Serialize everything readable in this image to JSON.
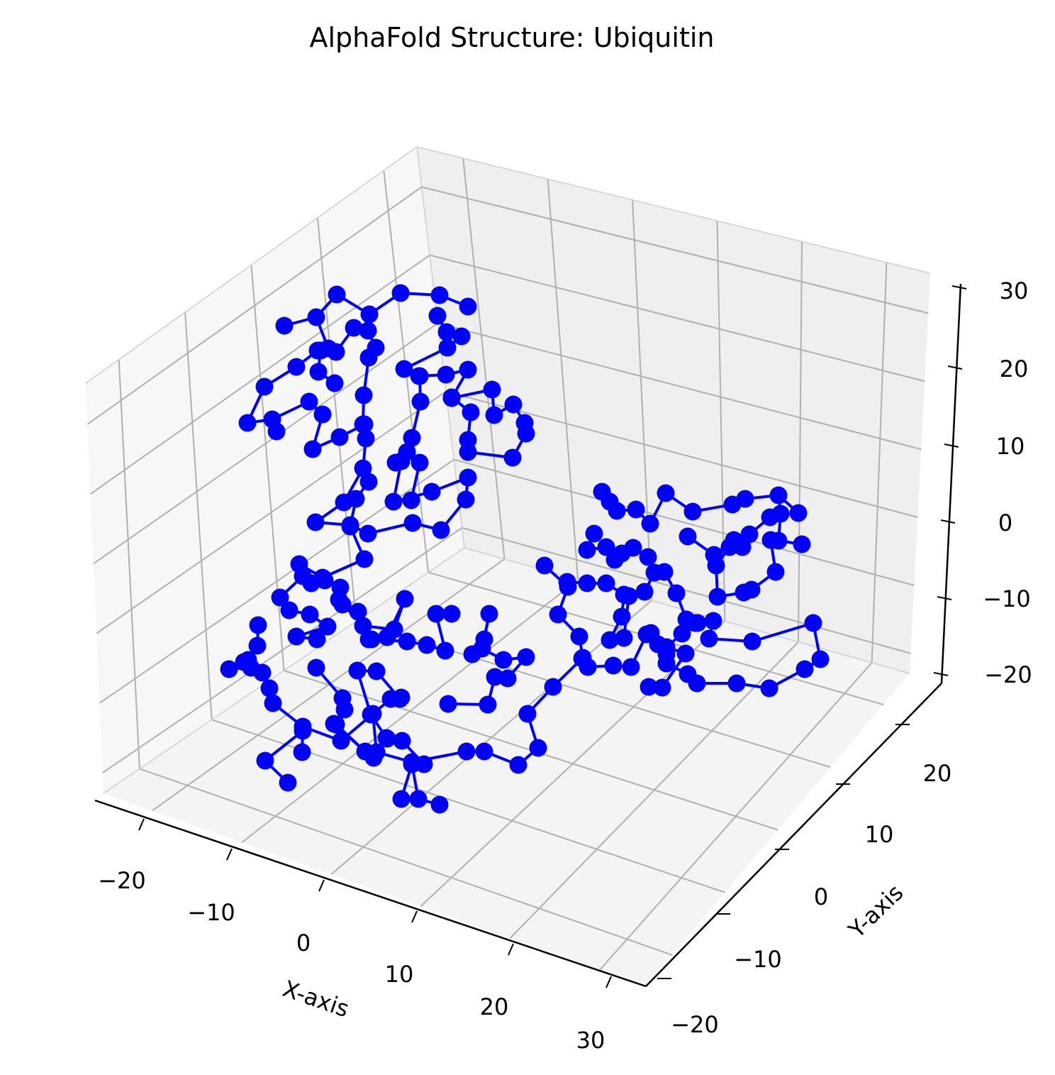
{
  "chart_data": {
    "type": "scatter",
    "subtype": "3d-line-with-markers",
    "title": "AlphaFold Structure: Ubiquitin",
    "xlabel": "X-axis",
    "ylabel": "Y-axis",
    "zlabel": "",
    "x_ticks": [
      "−20",
      "−10",
      "0",
      "10",
      "20",
      "30"
    ],
    "y_ticks": [
      "−20",
      "−10",
      "0",
      "10",
      "20"
    ],
    "z_ticks": [
      "−20",
      "−10",
      "0",
      "10",
      "20",
      "30"
    ],
    "grid": true,
    "color": "#0000ff",
    "pane_color": "#f2f2f2",
    "series": [
      {
        "segments": [
          [
            [
              401,
              459
            ],
            [
              446,
              447
            ],
            [
              475,
              415
            ],
            [
              521,
              443
            ],
            [
              565,
              413
            ],
            [
              620,
              416
            ],
            [
              660,
              432
            ]
          ],
          [
            [
              446,
              447
            ],
            [
              463,
              491
            ],
            [
              448,
              494
            ],
            [
              418,
              517
            ],
            [
              373,
              545
            ],
            [
              349,
              596
            ],
            [
              384,
              591
            ],
            [
              436,
              566
            ],
            [
              455,
              584
            ],
            [
              441,
              633
            ],
            [
              479,
              616
            ],
            [
              514,
              598
            ]
          ],
          [
            [
              474,
              496
            ],
            [
              499,
              462
            ],
            [
              519,
              466
            ],
            [
              530,
              490
            ],
            [
              520,
              504
            ],
            [
              513,
              557
            ],
            [
              512,
              598
            ]
          ],
          [
            [
              617,
              445
            ],
            [
              630,
              468
            ],
            [
              651,
              474
            ],
            [
              631,
              490
            ],
            [
              570,
              520
            ],
            [
              592,
              530
            ],
            [
              593,
              566
            ],
            [
              581,
              617
            ],
            [
              566,
              650
            ],
            [
              555,
              707
            ],
            [
              580,
              705
            ],
            [
              592,
              652
            ],
            [
              574,
              637
            ],
            [
              558,
              652
            ]
          ],
          [
            [
              591,
              530
            ],
            [
              629,
              528
            ],
            [
              660,
              521
            ],
            [
              637,
              561
            ],
            [
              694,
              549
            ],
            [
              697,
              585
            ],
            [
              724,
              570
            ],
            [
              740,
              596
            ],
            [
              742,
              611
            ],
            [
              723,
              645
            ],
            [
              660,
              637
            ],
            [
              660,
              620
            ],
            [
              664,
              581
            ],
            [
              637,
              560
            ]
          ],
          [
            [
              452,
              494
            ],
            [
              449,
              524
            ],
            [
              472,
              540
            ]
          ],
          [
            [
              516,
              618
            ],
            [
              512,
              660
            ],
            [
              485,
              708
            ],
            [
              445,
              736
            ],
            [
              494,
              740
            ],
            [
              519,
              752
            ],
            [
              582,
              737
            ],
            [
              622,
              747
            ],
            [
              657,
              704
            ],
            [
              660,
              673
            ],
            [
              609,
              693
            ],
            [
              555,
              707
            ]
          ],
          [
            [
              512,
              660
            ],
            [
              520,
              679
            ],
            [
              502,
              703
            ],
            [
              494,
              742
            ],
            [
              514,
              788
            ],
            [
              455,
              814
            ],
            [
              422,
              795
            ]
          ],
          [
            [
              390,
              608
            ],
            [
              384,
              591
            ]
          ],
          [
            [
              422,
              795
            ],
            [
              427,
              812
            ],
            [
              395,
              842
            ],
            [
              408,
              860
            ],
            [
              437,
              866
            ],
            [
              462,
              883
            ],
            [
              418,
              897
            ],
            [
              447,
              901
            ]
          ],
          [
            [
              427,
              812
            ],
            [
              439,
              822
            ],
            [
              458,
              818
            ],
            [
              480,
              828
            ],
            [
              483,
              852
            ],
            [
              505,
              862
            ],
            [
              520,
              901
            ],
            [
              546,
              898
            ],
            [
              571,
              844
            ],
            [
              556,
              887
            ],
            [
              512,
              882
            ],
            [
              478,
              845
            ]
          ],
          [
            [
              364,
              881
            ],
            [
              363,
              910
            ],
            [
              344,
              933
            ],
            [
              323,
              943
            ],
            [
              354,
              941
            ],
            [
              370,
              948
            ],
            [
              380,
              970
            ],
            [
              385,
              991
            ],
            [
              427,
              1024
            ],
            [
              481,
              1044
            ],
            [
              526,
              1006
            ],
            [
              551,
              985
            ],
            [
              566,
              983
            ]
          ],
          [
            [
              363,
              910
            ],
            [
              350,
              930
            ]
          ],
          [
            [
              446,
              941
            ],
            [
              483,
              984
            ],
            [
              486,
              1000
            ],
            [
              474,
              1021
            ],
            [
              515,
              1059
            ],
            [
              471,
              1020
            ]
          ],
          [
            [
              526,
              1006
            ],
            [
              531,
              1060
            ],
            [
              581,
              1074
            ],
            [
              658,
              1059
            ],
            [
              683,
              1059
            ],
            [
              731,
              1078
            ],
            [
              759,
              1054
            ],
            [
              744,
              1006
            ],
            [
              780,
              968
            ],
            [
              822,
              927
            ],
            [
              817,
              897
            ],
            [
              787,
              866
            ],
            [
              801,
              827
            ],
            [
              768,
              797
            ]
          ],
          [
            [
              406,
              1103
            ],
            [
              374,
              1072
            ],
            [
              427,
              1030
            ],
            [
              426,
              1060
            ]
          ],
          [
            [
              566,
              1126
            ],
            [
              581,
              1077
            ],
            [
              590,
              1126
            ],
            [
              620,
              1134
            ]
          ],
          [
            [
              598,
              1077
            ],
            [
              567,
              1044
            ],
            [
              546,
              1041
            ],
            [
              527,
              1068
            ]
          ],
          [
            [
              545,
              1040
            ],
            [
              523,
              1007
            ],
            [
              504,
              945
            ],
            [
              531,
              946
            ],
            [
              564,
              985
            ]
          ],
          [
            [
              524,
              901
            ],
            [
              574,
              904
            ],
            [
              602,
              909
            ],
            [
              628,
              917
            ],
            [
              615,
              865
            ],
            [
              637,
              865
            ]
          ],
          [
            [
              666,
              922
            ],
            [
              683,
              901
            ],
            [
              690,
              865
            ],
            [
              680,
              914
            ],
            [
              710,
              930
            ],
            [
              742,
              926
            ],
            [
              716,
              956
            ],
            [
              698,
              954
            ],
            [
              688,
              993
            ]
          ],
          [
            [
              632,
              992
            ],
            [
              688,
              993
            ]
          ],
          [
            [
              800,
              820
            ],
            [
              828,
              822
            ],
            [
              855,
              822
            ],
            [
              880,
              838
            ],
            [
              877,
              869
            ],
            [
              860,
              902
            ],
            [
              880,
              899
            ],
            [
              887,
              840
            ],
            [
              909,
              834
            ],
            [
              923,
              807
            ],
            [
              914,
              785
            ],
            [
              893,
              772
            ],
            [
              877,
              780
            ],
            [
              867,
              789
            ],
            [
              855,
              771
            ],
            [
              828,
              775
            ],
            [
              838,
              752
            ]
          ],
          [
            [
              849,
              693
            ],
            [
              860,
              707
            ],
            [
              870,
              720
            ],
            [
              897,
              718
            ],
            [
              917,
              738
            ],
            [
              939,
              695
            ],
            [
              977,
              721
            ],
            [
              1033,
              711
            ],
            [
              1051,
              703
            ],
            [
              1098,
              698
            ],
            [
              1126,
              723
            ]
          ],
          [
            [
              1098,
              698
            ],
            [
              1101,
              724
            ],
            [
              1098,
              762
            ],
            [
              1131,
              767
            ]
          ],
          [
            [
              1087,
              761
            ],
            [
              1094,
              806
            ],
            [
              1060,
              831
            ],
            [
              1049,
              835
            ],
            [
              1012,
              841
            ],
            [
              1010,
              797
            ],
            [
              1029,
              771
            ],
            [
              1047,
              771
            ],
            [
              1057,
              753
            ],
            [
              1086,
              729
            ]
          ],
          [
            [
              970,
              756
            ],
            [
              1007,
              782
            ],
            [
              1035,
              761
            ]
          ],
          [
            [
              937,
              806
            ],
            [
              954,
              836
            ],
            [
              968,
              873
            ],
            [
              984,
              878
            ],
            [
              1006,
              875
            ],
            [
              1000,
              900
            ],
            [
              1061,
              904
            ],
            [
              1147,
              878
            ],
            [
              1157,
              929
            ],
            [
              1135,
              943
            ],
            [
              1085,
              970
            ],
            [
              1039,
              963
            ],
            [
              983,
              963
            ],
            [
              970,
              950
            ],
            [
              940,
              935
            ],
            [
              912,
              894
            ],
            [
              890,
              940
            ],
            [
              865,
              938
            ],
            [
              829,
              940
            ],
            [
              821,
              928
            ]
          ],
          [
            [
              915,
              968
            ],
            [
              934,
              969
            ],
            [
              967,
              921
            ],
            [
              928,
              908
            ],
            [
              940,
              922
            ]
          ],
          [
            [
              918,
              892
            ],
            [
              940,
              912
            ],
            [
              962,
              893
            ],
            [
              980,
              878
            ]
          ]
        ]
      }
    ]
  }
}
